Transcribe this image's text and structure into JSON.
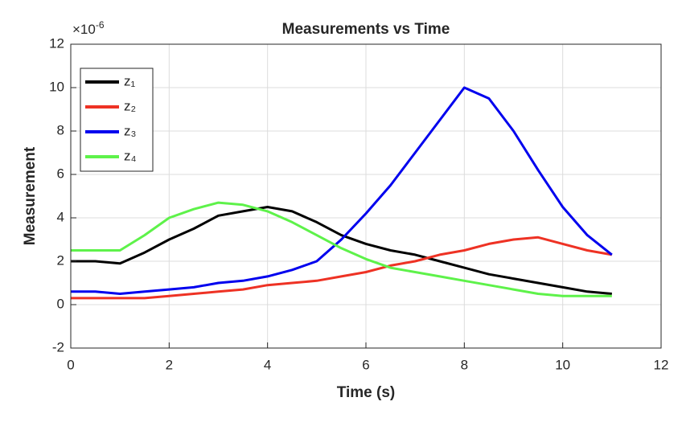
{
  "chart_data": {
    "type": "line",
    "title": "Measurements vs Time",
    "x_label": "Time (s)",
    "y_label": "Measurement",
    "y_exponent": {
      "base": "×10",
      "power": "-6"
    },
    "x": [
      0,
      0.5,
      1,
      1.5,
      2,
      2.5,
      3,
      3.5,
      4,
      4.5,
      5,
      5.5,
      6,
      6.5,
      7,
      7.5,
      8,
      8.5,
      9,
      9.5,
      10,
      10.5,
      11
    ],
    "series": [
      {
        "name": "z₁",
        "color": "#000000",
        "values": [
          2.0,
          2.0,
          1.9,
          2.4,
          3.0,
          3.5,
          4.1,
          4.3,
          4.5,
          4.3,
          3.8,
          3.2,
          2.8,
          2.5,
          2.3,
          2.0,
          1.7,
          1.4,
          1.2,
          1.0,
          0.8,
          0.6,
          0.5
        ]
      },
      {
        "name": "z₂",
        "color": "#ee3224",
        "values": [
          0.3,
          0.3,
          0.3,
          0.3,
          0.4,
          0.5,
          0.6,
          0.7,
          0.9,
          1.0,
          1.1,
          1.3,
          1.5,
          1.8,
          2.0,
          2.3,
          2.5,
          2.8,
          3.0,
          3.1,
          2.8,
          2.5,
          2.3
        ]
      },
      {
        "name": "z₃",
        "color": "#0000ee",
        "values": [
          0.6,
          0.6,
          0.5,
          0.6,
          0.7,
          0.8,
          1.0,
          1.1,
          1.3,
          1.6,
          2.0,
          3.0,
          4.2,
          5.5,
          7.0,
          8.5,
          10.0,
          9.5,
          8.0,
          6.2,
          4.5,
          3.2,
          2.3
        ]
      },
      {
        "name": "z₄",
        "color": "#5ef24a",
        "values": [
          2.5,
          2.5,
          2.5,
          3.2,
          4.0,
          4.4,
          4.7,
          4.6,
          4.3,
          3.8,
          3.2,
          2.6,
          2.1,
          1.7,
          1.5,
          1.3,
          1.1,
          0.9,
          0.7,
          0.5,
          0.4,
          0.4,
          0.4
        ]
      }
    ],
    "xlim": [
      0,
      12
    ],
    "xticks": [
      0,
      2,
      4,
      6,
      8,
      10,
      12
    ],
    "ylim": [
      -2,
      12
    ],
    "yticks": [
      -2,
      0,
      2,
      4,
      6,
      8,
      10,
      12
    ],
    "grid": true,
    "legend": "upper left"
  }
}
